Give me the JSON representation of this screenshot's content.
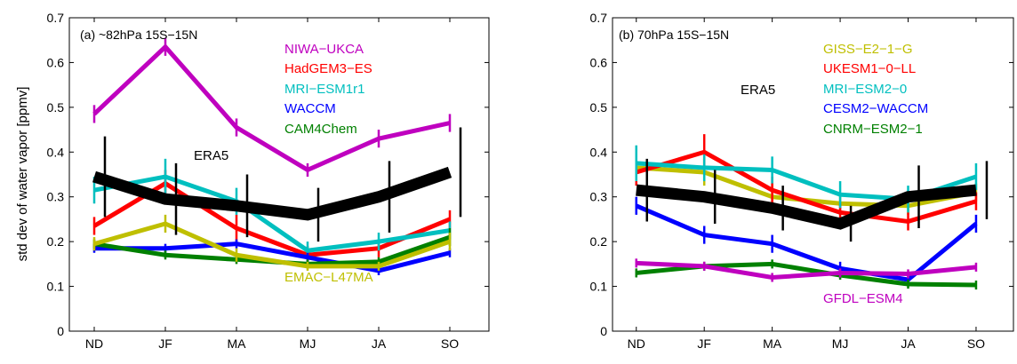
{
  "figure": {
    "ylabel": "std dev of water vapor [ppmv]"
  },
  "chart_data": [
    {
      "type": "line",
      "panel_label": "(a) ~82hPa 15S−15N",
      "categories": [
        "ND",
        "JF",
        "MA",
        "MJ",
        "JA",
        "SO"
      ],
      "ylim": [
        0,
        0.7
      ],
      "yticks": [
        "0",
        "0.1",
        "0.2",
        "0.3",
        "0.4",
        "0.5",
        "0.6",
        "0.7"
      ],
      "ylabel": "std dev of water vapor [ppmv]",
      "xlabel": "",
      "grid": false,
      "series": [
        {
          "name": "NIWA−UKCA",
          "color": "#bf00bf",
          "values": [
            0.485,
            0.635,
            0.455,
            0.36,
            0.43,
            0.465
          ],
          "err": [
            0.02,
            0.02,
            0.02,
            0.015,
            0.02,
            0.02
          ]
        },
        {
          "name": "HadGEM3−ES",
          "color": "#ff0000",
          "values": [
            0.235,
            0.33,
            0.23,
            0.17,
            0.185,
            0.25
          ],
          "err": [
            0.02,
            0.03,
            0.03,
            0.02,
            0.02,
            0.02
          ]
        },
        {
          "name": "MRI−ESM1r1",
          "color": "#00bfbf",
          "values": [
            0.315,
            0.345,
            0.29,
            0.18,
            0.2,
            0.225
          ],
          "err": [
            0.03,
            0.04,
            0.03,
            0.02,
            0.02,
            0.02
          ]
        },
        {
          "name": "WACCM",
          "color": "#0000ff",
          "values": [
            0.185,
            0.185,
            0.195,
            0.165,
            0.135,
            0.175
          ],
          "err": [
            0.01,
            0.01,
            0.01,
            0.01,
            0.01,
            0.01
          ]
        },
        {
          "name": "CAM4Chem",
          "color": "#008000",
          "values": [
            0.195,
            0.17,
            0.16,
            0.15,
            0.155,
            0.21
          ],
          "err": [
            0.01,
            0.01,
            0.01,
            0.01,
            0.01,
            0.02
          ]
        },
        {
          "name": "EMAC−L47MA",
          "color": "#bfbf00",
          "values": [
            0.195,
            0.24,
            0.17,
            0.145,
            0.145,
            0.2
          ],
          "err": [
            0.015,
            0.02,
            0.015,
            0.01,
            0.01,
            0.02
          ]
        },
        {
          "name": "ERA5",
          "color": "#000000",
          "values": [
            0.345,
            0.295,
            0.28,
            0.26,
            0.3,
            0.355
          ],
          "err": [
            0.09,
            0.08,
            0.07,
            0.06,
            0.08,
            0.1
          ]
        }
      ],
      "legend": [
        {
          "text": "NIWA−UKCA",
          "color": "#bf00bf"
        },
        {
          "text": "HadGEM3−ES",
          "color": "#ff0000"
        },
        {
          "text": "MRI−ESM1r1",
          "color": "#00bfbf"
        },
        {
          "text": "WACCM",
          "color": "#0000ff"
        },
        {
          "text": "CAM4Chem",
          "color": "#008000"
        }
      ],
      "annotations": [
        {
          "text": "ERA5",
          "color": "#000000"
        },
        {
          "text": "EMAC−L47MA",
          "color": "#bfbf00"
        }
      ]
    },
    {
      "type": "line",
      "panel_label": "(b) 70hPa 15S−15N",
      "categories": [
        "ND",
        "JF",
        "MA",
        "MJ",
        "JA",
        "SO"
      ],
      "ylim": [
        0,
        0.7
      ],
      "yticks": [
        "0",
        "0.1",
        "0.2",
        "0.3",
        "0.4",
        "0.5",
        "0.6",
        "0.7"
      ],
      "ylabel": "",
      "xlabel": "",
      "grid": false,
      "series": [
        {
          "name": "GISS−E2−1−G",
          "color": "#bfbf00",
          "values": [
            0.365,
            0.355,
            0.3,
            0.285,
            0.28,
            0.31
          ],
          "err": [
            0.04,
            0.03,
            0.03,
            0.02,
            0.02,
            0.02
          ]
        },
        {
          "name": "UKESM1−0−LL",
          "color": "#ff0000",
          "values": [
            0.355,
            0.4,
            0.315,
            0.265,
            0.245,
            0.29
          ],
          "err": [
            0.03,
            0.04,
            0.03,
            0.02,
            0.02,
            0.02
          ]
        },
        {
          "name": "MRI−ESM2−0",
          "color": "#00bfbf",
          "values": [
            0.375,
            0.365,
            0.36,
            0.305,
            0.295,
            0.345
          ],
          "err": [
            0.04,
            0.03,
            0.03,
            0.03,
            0.03,
            0.03
          ]
        },
        {
          "name": "CESM2−WACCM",
          "color": "#0000ff",
          "values": [
            0.28,
            0.215,
            0.195,
            0.14,
            0.115,
            0.24
          ],
          "err": [
            0.02,
            0.02,
            0.02,
            0.015,
            0.015,
            0.02
          ]
        },
        {
          "name": "CNRM−ESM2−1",
          "color": "#008000",
          "values": [
            0.13,
            0.145,
            0.15,
            0.125,
            0.105,
            0.103
          ],
          "err": [
            0.01,
            0.01,
            0.01,
            0.01,
            0.01,
            0.01
          ]
        },
        {
          "name": "GFDL−ESM4",
          "color": "#bf00bf",
          "values": [
            0.152,
            0.145,
            0.12,
            0.13,
            0.128,
            0.143
          ],
          "err": [
            0.01,
            0.01,
            0.01,
            0.01,
            0.01,
            0.01
          ]
        },
        {
          "name": "ERA5",
          "color": "#000000",
          "values": [
            0.315,
            0.3,
            0.275,
            0.24,
            0.3,
            0.315
          ],
          "err": [
            0.07,
            0.06,
            0.05,
            0.04,
            0.07,
            0.065
          ]
        }
      ],
      "legend": [
        {
          "text": "GISS−E2−1−G",
          "color": "#bfbf00"
        },
        {
          "text": "UKESM1−0−LL",
          "color": "#ff0000"
        },
        {
          "text": "MRI−ESM2−0",
          "color": "#00bfbf"
        },
        {
          "text": "CESM2−WACCM",
          "color": "#0000ff"
        },
        {
          "text": "CNRM−ESM2−1",
          "color": "#008000"
        }
      ],
      "annotations": [
        {
          "text": "ERA5",
          "color": "#000000"
        },
        {
          "text": "GFDL−ESM4",
          "color": "#bf00bf"
        }
      ]
    }
  ]
}
